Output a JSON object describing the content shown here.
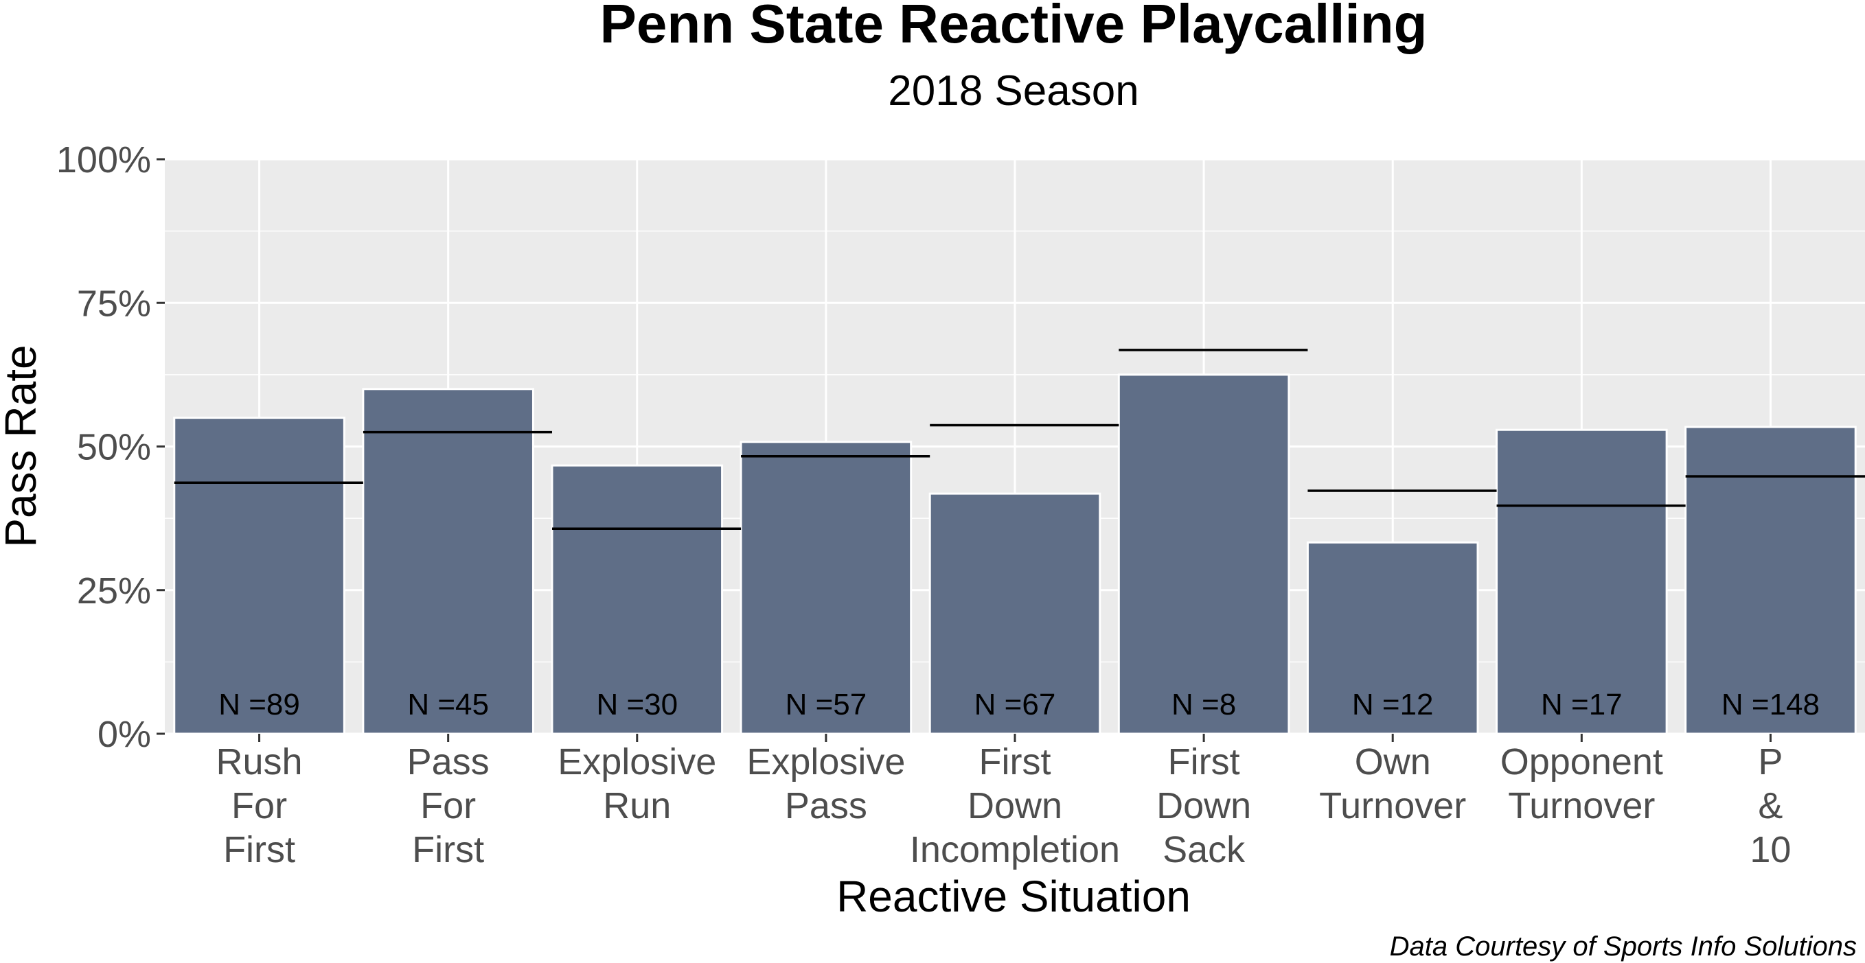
{
  "chart_data": {
    "type": "bar",
    "title": "Penn State Reactive Playcalling",
    "subtitle": "2018 Season",
    "xlabel": "Reactive Situation",
    "ylabel": "Pass Rate",
    "ylim": [
      0,
      1
    ],
    "yticks": [
      0,
      0.25,
      0.5,
      0.75,
      1.0
    ],
    "ytick_labels": [
      "0%",
      "25%",
      "50%",
      "75%",
      "100%"
    ],
    "grid": true,
    "bar_color": "#5f6e87",
    "panel_color": "#ebebeb",
    "categories": [
      [
        "Rush",
        "For",
        "First"
      ],
      [
        "Pass",
        "For",
        "First"
      ],
      [
        "Explosive",
        "Run"
      ],
      [
        "Explosive",
        "Pass"
      ],
      [
        "First",
        "Down",
        "Incompletion"
      ],
      [
        "First",
        "Down",
        "Sack"
      ],
      [
        "Own",
        "Turnover"
      ],
      [
        "Opponent",
        "Turnover"
      ],
      [
        "P",
        "&",
        "10"
      ]
    ],
    "values": [
      0.55,
      0.6,
      0.467,
      0.508,
      0.418,
      0.625,
      0.333,
      0.529,
      0.534
    ],
    "reference_values": [
      0.437,
      0.525,
      0.357,
      0.483,
      0.537,
      0.668,
      0.423,
      0.397,
      0.448
    ],
    "n_labels": [
      "N =89",
      "N =45",
      "N =30",
      "N =57",
      "N =67",
      "N =8",
      "N =12",
      "N =17",
      "N =148"
    ],
    "caption": "Data Courtesy of Sports Info Solutions"
  }
}
